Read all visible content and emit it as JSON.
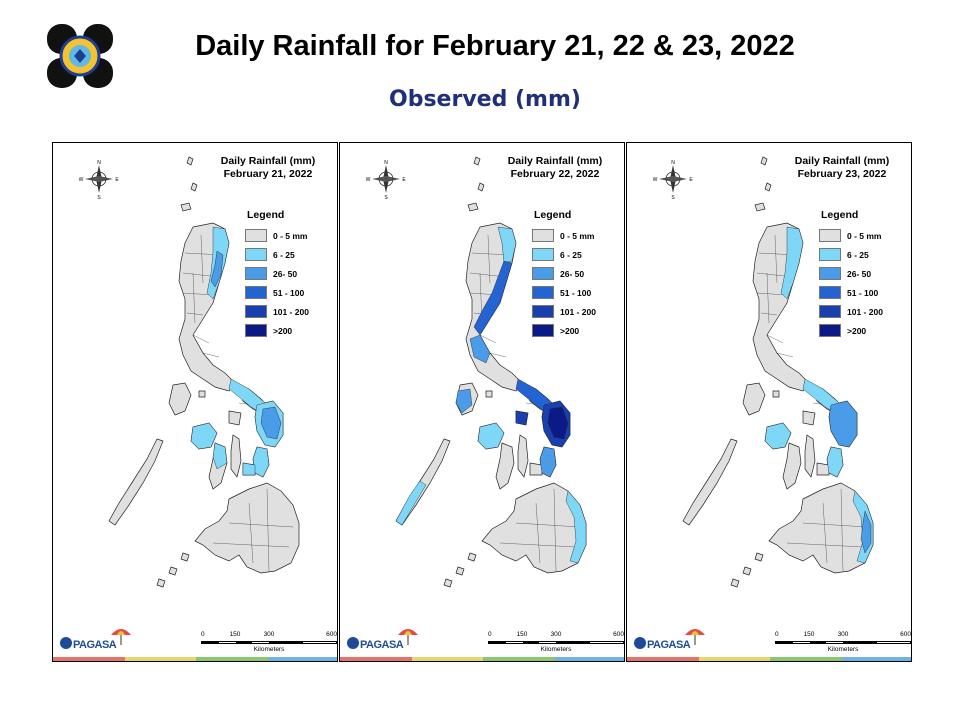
{
  "header": {
    "title": "Daily Rainfall for February 21, 22 & 23, 2022",
    "subtitle": "Observed (mm)"
  },
  "legend": {
    "heading": "Legend",
    "items": [
      {
        "label": "0 - 5 mm",
        "color": "#e0e0e0"
      },
      {
        "label": "6 - 25",
        "color": "#7fd7f7"
      },
      {
        "label": "26- 50",
        "color": "#4a9be8"
      },
      {
        "label": "51 - 100",
        "color": "#2364d2"
      },
      {
        "label": "101 - 200",
        "color": "#1a3fae"
      },
      {
        "label": ">200",
        "color": "#0c1a86"
      }
    ]
  },
  "compass": {
    "n": "N",
    "s": "S",
    "e": "E",
    "w": "W"
  },
  "scale": {
    "ticks": [
      "0",
      "150",
      "300",
      "600"
    ],
    "unit": "Kilometers"
  },
  "brand": {
    "name": "PAGASA"
  },
  "stripe_colors": [
    "#e8716a",
    "#e8d66a",
    "#8cc56f",
    "#6fb3e0"
  ],
  "panels": [
    {
      "title_line1": "Daily Rainfall (mm)",
      "title_line2": "February 21, 2022",
      "rain": [
        {
          "region": "ne_luzon",
          "class": 1
        },
        {
          "region": "ne_luzon_core",
          "class": 2
        },
        {
          "region": "bicol",
          "class": 1
        },
        {
          "region": "samar",
          "class": 1
        },
        {
          "region": "samar_core",
          "class": 2
        },
        {
          "region": "leyte",
          "class": 1
        },
        {
          "region": "panay",
          "class": 1
        },
        {
          "region": "negros",
          "class": 1
        },
        {
          "region": "bohol",
          "class": 1
        }
      ]
    },
    {
      "title_line1": "Daily Rainfall (mm)",
      "title_line2": "February 22, 2022",
      "rain": [
        {
          "region": "n_luzon_east",
          "class": 1
        },
        {
          "region": "c_luzon_east",
          "class": 3
        },
        {
          "region": "luzon_west",
          "class": 2
        },
        {
          "region": "bicol",
          "class": 3
        },
        {
          "region": "masbate",
          "class": 4
        },
        {
          "region": "samar",
          "class": 4
        },
        {
          "region": "samar_core",
          "class": 5
        },
        {
          "region": "leyte",
          "class": 2
        },
        {
          "region": "mindoro",
          "class": 2
        },
        {
          "region": "panay",
          "class": 1
        },
        {
          "region": "palawan",
          "class": 1
        },
        {
          "region": "e_mindanao",
          "class": 1
        }
      ]
    },
    {
      "title_line1": "Daily Rainfall (mm)",
      "title_line2": "February 23, 2022",
      "rain": [
        {
          "region": "ne_luzon",
          "class": 1
        },
        {
          "region": "bicol",
          "class": 1
        },
        {
          "region": "samar",
          "class": 2
        },
        {
          "region": "leyte",
          "class": 1
        },
        {
          "region": "panay",
          "class": 1
        },
        {
          "region": "e_mindanao",
          "class": 1
        },
        {
          "region": "e_mindanao_core",
          "class": 2
        }
      ]
    }
  ]
}
